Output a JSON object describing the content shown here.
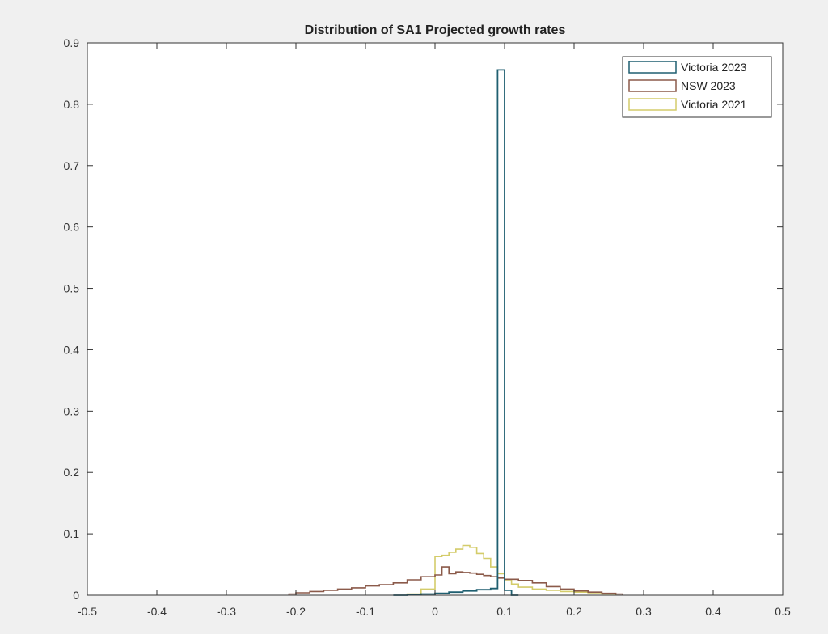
{
  "chart_data": {
    "type": "histogram",
    "title": "Distribution of SA1 Projected growth rates",
    "xlabel": "",
    "ylabel": "",
    "xlim": [
      -0.5,
      0.5
    ],
    "ylim": [
      0,
      0.9
    ],
    "x_ticks": [
      -0.5,
      -0.4,
      -0.3,
      -0.2,
      -0.1,
      0,
      0.1,
      0.2,
      0.3,
      0.4,
      0.5
    ],
    "y_ticks": [
      0,
      0.1,
      0.2,
      0.3,
      0.4,
      0.5,
      0.6,
      0.7,
      0.8,
      0.9
    ],
    "x_tick_labels": [
      "-0.5",
      "-0.4",
      "-0.3",
      "-0.2",
      "-0.1",
      "0",
      "0.1",
      "0.2",
      "0.3",
      "0.4",
      "0.5"
    ],
    "y_tick_labels": [
      "0",
      "0.1",
      "0.2",
      "0.3",
      "0.4",
      "0.5",
      "0.6",
      "0.7",
      "0.8",
      "0.9"
    ],
    "grid": false,
    "legend_position": "top-right",
    "series": [
      {
        "name": "Victoria 2023",
        "color": "#1f5f70",
        "bins": [
          [
            -0.06,
            -0.04,
            0.0
          ],
          [
            -0.04,
            -0.02,
            0.001
          ],
          [
            -0.02,
            0.0,
            0.002
          ],
          [
            0.0,
            0.02,
            0.003
          ],
          [
            0.02,
            0.04,
            0.005
          ],
          [
            0.04,
            0.06,
            0.007
          ],
          [
            0.06,
            0.08,
            0.009
          ],
          [
            0.08,
            0.09,
            0.011
          ],
          [
            0.09,
            0.1,
            0.856
          ],
          [
            0.1,
            0.11,
            0.008
          ],
          [
            0.11,
            0.12,
            0.0
          ]
        ]
      },
      {
        "name": "NSW 2023",
        "color": "#8b5a4a",
        "bins": [
          [
            -0.21,
            -0.2,
            0.002
          ],
          [
            -0.2,
            -0.18,
            0.004
          ],
          [
            -0.18,
            -0.16,
            0.006
          ],
          [
            -0.16,
            -0.14,
            0.008
          ],
          [
            -0.14,
            -0.12,
            0.01
          ],
          [
            -0.12,
            -0.1,
            0.012
          ],
          [
            -0.1,
            -0.08,
            0.015
          ],
          [
            -0.08,
            -0.06,
            0.017
          ],
          [
            -0.06,
            -0.04,
            0.02
          ],
          [
            -0.04,
            -0.02,
            0.025
          ],
          [
            -0.02,
            0.0,
            0.03
          ],
          [
            0.0,
            0.01,
            0.033
          ],
          [
            0.01,
            0.02,
            0.046
          ],
          [
            0.02,
            0.03,
            0.035
          ],
          [
            0.03,
            0.04,
            0.038
          ],
          [
            0.04,
            0.05,
            0.037
          ],
          [
            0.05,
            0.06,
            0.036
          ],
          [
            0.06,
            0.07,
            0.034
          ],
          [
            0.07,
            0.08,
            0.032
          ],
          [
            0.08,
            0.09,
            0.03
          ],
          [
            0.09,
            0.1,
            0.028
          ],
          [
            0.1,
            0.12,
            0.026
          ],
          [
            0.12,
            0.14,
            0.024
          ],
          [
            0.14,
            0.16,
            0.02
          ],
          [
            0.16,
            0.18,
            0.014
          ],
          [
            0.18,
            0.2,
            0.01
          ],
          [
            0.2,
            0.22,
            0.007
          ],
          [
            0.22,
            0.24,
            0.005
          ],
          [
            0.24,
            0.26,
            0.003
          ],
          [
            0.26,
            0.27,
            0.002
          ]
        ]
      },
      {
        "name": "Victoria 2021",
        "color": "#d4cc6a",
        "bins": [
          [
            -0.04,
            -0.02,
            0.002
          ],
          [
            -0.02,
            0.0,
            0.01
          ],
          [
            0.0,
            0.01,
            0.063
          ],
          [
            0.01,
            0.02,
            0.065
          ],
          [
            0.02,
            0.03,
            0.07
          ],
          [
            0.03,
            0.04,
            0.075
          ],
          [
            0.04,
            0.05,
            0.081
          ],
          [
            0.05,
            0.06,
            0.078
          ],
          [
            0.06,
            0.07,
            0.068
          ],
          [
            0.07,
            0.08,
            0.06
          ],
          [
            0.08,
            0.09,
            0.046
          ],
          [
            0.09,
            0.1,
            0.035
          ],
          [
            0.1,
            0.11,
            0.025
          ],
          [
            0.11,
            0.12,
            0.018
          ],
          [
            0.12,
            0.14,
            0.013
          ],
          [
            0.14,
            0.16,
            0.01
          ],
          [
            0.16,
            0.18,
            0.008
          ],
          [
            0.18,
            0.2,
            0.006
          ],
          [
            0.2,
            0.22,
            0.005
          ],
          [
            0.22,
            0.24,
            0.004
          ],
          [
            0.24,
            0.26,
            0.002
          ]
        ]
      }
    ]
  }
}
